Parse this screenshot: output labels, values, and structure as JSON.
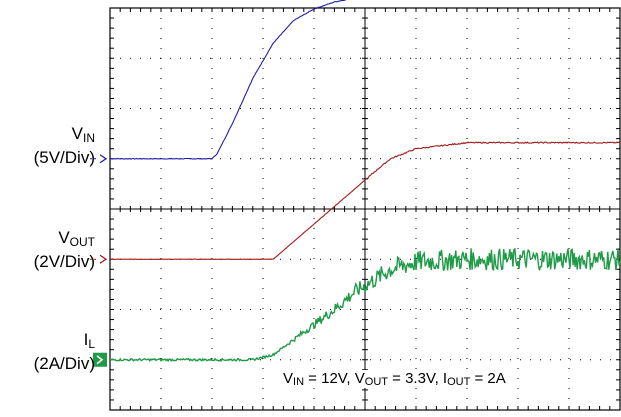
{
  "chart_data": {
    "type": "line",
    "title": "",
    "grid": true,
    "grid_divisions": {
      "x": 10,
      "y": 8
    },
    "x": [
      0,
      1,
      2,
      2.1,
      2.4,
      2.8,
      3.2,
      3.6,
      4,
      4.4,
      4.8,
      5.2,
      5.5,
      6,
      7,
      8,
      9,
      10
    ],
    "xlabel": "",
    "ylabel": "",
    "series": [
      {
        "key": "vin",
        "label_main": "V",
        "label_sub": "IN",
        "scale": "(5V/Div)",
        "color": "#1f1fa8",
        "marker": "arrow",
        "values_div": [
          5.0,
          5.0,
          5.0,
          5.1,
          5.7,
          6.6,
          7.3,
          7.75,
          7.98,
          8.12,
          8.2,
          8.26,
          8.28,
          8.3,
          8.3,
          8.3,
          8.3,
          8.3
        ]
      },
      {
        "key": "vout",
        "label_main": "V",
        "label_sub": "OUT",
        "scale": "(2V/Div)",
        "color": "#9e1b1b",
        "marker": "arrow",
        "values_div": [
          3.0,
          3.0,
          3.0,
          3.0,
          3.0,
          3.0,
          3.0,
          3.35,
          3.7,
          4.05,
          4.4,
          4.75,
          5.0,
          5.2,
          5.32,
          5.32,
          5.32,
          5.32
        ]
      },
      {
        "key": "il",
        "label_main": "I",
        "label_sub": "L",
        "scale": "(2A/Div)",
        "color": "#1f9a46",
        "marker": "box",
        "values_div": [
          1.0,
          1.0,
          1.0,
          1.0,
          1.0,
          1.0,
          1.1,
          1.4,
          1.7,
          2.0,
          2.35,
          2.6,
          2.8,
          2.95,
          3.0,
          3.0,
          3.0,
          3.0
        ]
      }
    ],
    "annotation": {
      "parts": [
        "V",
        "IN",
        " = 12V, V",
        "OUT",
        " = 3.3V, I",
        "OUT",
        " = 2A"
      ]
    }
  }
}
